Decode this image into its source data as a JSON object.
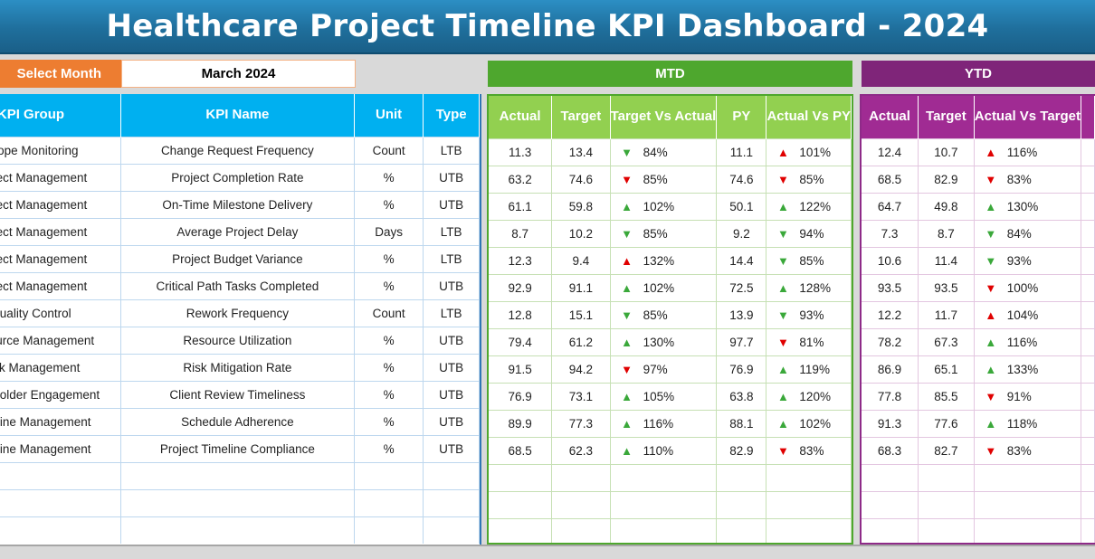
{
  "title": "Healthcare Project Timeline KPI Dashboard - 2024",
  "select_month": {
    "label": "Select Month",
    "value": "March 2024"
  },
  "sections": {
    "mtd": "MTD",
    "ytd": "YTD"
  },
  "left_headers": [
    "KPI Group",
    "KPI Name",
    "Unit",
    "Type"
  ],
  "mtd_headers": [
    "Actual",
    "Target",
    "Target Vs Actual",
    "PY",
    "Actual Vs PY"
  ],
  "ytd_headers": [
    "Actual",
    "Target",
    "Actual Vs Target"
  ],
  "colors": {
    "mtd_accent": "#4ea72e",
    "ytd_accent": "#7f2579",
    "kpi_header": "#00b0f0",
    "select_month": "#ed7d31",
    "good": "#3aa83a",
    "bad": "#e00000"
  },
  "rows": [
    {
      "group": "Scope Monitoring",
      "name": "Change Request Frequency",
      "unit": "Count",
      "type": "LTB",
      "mtd": {
        "actual": "11.3",
        "target": "13.4",
        "tva": "84%",
        "tva_dir": "down",
        "tva_good": true,
        "py": "11.1",
        "avp": "101%",
        "avp_dir": "up",
        "avp_good": false
      },
      "ytd": {
        "actual": "12.4",
        "target": "10.7",
        "avt": "116%",
        "avt_dir": "up",
        "avt_good": false
      }
    },
    {
      "group": "Project Management",
      "name": "Project Completion Rate",
      "unit": "%",
      "type": "UTB",
      "mtd": {
        "actual": "63.2",
        "target": "74.6",
        "tva": "85%",
        "tva_dir": "down",
        "tva_good": false,
        "py": "74.6",
        "avp": "85%",
        "avp_dir": "down",
        "avp_good": false
      },
      "ytd": {
        "actual": "68.5",
        "target": "82.9",
        "avt": "83%",
        "avt_dir": "down",
        "avt_good": false
      }
    },
    {
      "group": "Project Management",
      "name": "On-Time Milestone Delivery",
      "unit": "%",
      "type": "UTB",
      "mtd": {
        "actual": "61.1",
        "target": "59.8",
        "tva": "102%",
        "tva_dir": "up",
        "tva_good": true,
        "py": "50.1",
        "avp": "122%",
        "avp_dir": "up",
        "avp_good": true
      },
      "ytd": {
        "actual": "64.7",
        "target": "49.8",
        "avt": "130%",
        "avt_dir": "up",
        "avt_good": true
      }
    },
    {
      "group": "Project Management",
      "name": "Average Project Delay",
      "unit": "Days",
      "type": "LTB",
      "mtd": {
        "actual": "8.7",
        "target": "10.2",
        "tva": "85%",
        "tva_dir": "down",
        "tva_good": true,
        "py": "9.2",
        "avp": "94%",
        "avp_dir": "down",
        "avp_good": true
      },
      "ytd": {
        "actual": "7.3",
        "target": "8.7",
        "avt": "84%",
        "avt_dir": "down",
        "avt_good": true
      }
    },
    {
      "group": "Project Management",
      "name": "Project Budget Variance",
      "unit": "%",
      "type": "LTB",
      "mtd": {
        "actual": "12.3",
        "target": "9.4",
        "tva": "132%",
        "tva_dir": "up",
        "tva_good": false,
        "py": "14.4",
        "avp": "85%",
        "avp_dir": "down",
        "avp_good": true
      },
      "ytd": {
        "actual": "10.6",
        "target": "11.4",
        "avt": "93%",
        "avt_dir": "down",
        "avt_good": true
      }
    },
    {
      "group": "Project Management",
      "name": "Critical Path Tasks Completed",
      "unit": "%",
      "type": "UTB",
      "mtd": {
        "actual": "92.9",
        "target": "91.1",
        "tva": "102%",
        "tva_dir": "up",
        "tva_good": true,
        "py": "72.5",
        "avp": "128%",
        "avp_dir": "up",
        "avp_good": true
      },
      "ytd": {
        "actual": "93.5",
        "target": "93.5",
        "avt": "100%",
        "avt_dir": "down",
        "avt_good": false
      }
    },
    {
      "group": "Quality Control",
      "name": "Rework Frequency",
      "unit": "Count",
      "type": "LTB",
      "mtd": {
        "actual": "12.8",
        "target": "15.1",
        "tva": "85%",
        "tva_dir": "down",
        "tva_good": true,
        "py": "13.9",
        "avp": "93%",
        "avp_dir": "down",
        "avp_good": true
      },
      "ytd": {
        "actual": "12.2",
        "target": "11.7",
        "avt": "104%",
        "avt_dir": "up",
        "avt_good": false
      }
    },
    {
      "group": "Resource Management",
      "name": "Resource Utilization",
      "unit": "%",
      "type": "UTB",
      "mtd": {
        "actual": "79.4",
        "target": "61.2",
        "tva": "130%",
        "tva_dir": "up",
        "tva_good": true,
        "py": "97.7",
        "avp": "81%",
        "avp_dir": "down",
        "avp_good": false
      },
      "ytd": {
        "actual": "78.2",
        "target": "67.3",
        "avt": "116%",
        "avt_dir": "up",
        "avt_good": true
      }
    },
    {
      "group": "Risk Management",
      "name": "Risk Mitigation Rate",
      "unit": "%",
      "type": "UTB",
      "mtd": {
        "actual": "91.5",
        "target": "94.2",
        "tva": "97%",
        "tva_dir": "down",
        "tva_good": false,
        "py": "76.9",
        "avp": "119%",
        "avp_dir": "up",
        "avp_good": true
      },
      "ytd": {
        "actual": "86.9",
        "target": "65.1",
        "avt": "133%",
        "avt_dir": "up",
        "avt_good": true
      }
    },
    {
      "group": "Stakeholder Engagement",
      "name": "Client Review Timeliness",
      "unit": "%",
      "type": "UTB",
      "mtd": {
        "actual": "76.9",
        "target": "73.1",
        "tva": "105%",
        "tva_dir": "up",
        "tva_good": true,
        "py": "63.8",
        "avp": "120%",
        "avp_dir": "up",
        "avp_good": true
      },
      "ytd": {
        "actual": "77.8",
        "target": "85.5",
        "avt": "91%",
        "avt_dir": "down",
        "avt_good": false
      }
    },
    {
      "group": "Timeline Management",
      "name": "Schedule Adherence",
      "unit": "%",
      "type": "UTB",
      "mtd": {
        "actual": "89.9",
        "target": "77.3",
        "tva": "116%",
        "tva_dir": "up",
        "tva_good": true,
        "py": "88.1",
        "avp": "102%",
        "avp_dir": "up",
        "avp_good": true
      },
      "ytd": {
        "actual": "91.3",
        "target": "77.6",
        "avt": "118%",
        "avt_dir": "up",
        "avt_good": true
      }
    },
    {
      "group": "Timeline Management",
      "name": "Project Timeline Compliance",
      "unit": "%",
      "type": "UTB",
      "mtd": {
        "actual": "68.5",
        "target": "62.3",
        "tva": "110%",
        "tva_dir": "up",
        "tva_good": true,
        "py": "82.9",
        "avp": "83%",
        "avp_dir": "down",
        "avp_good": false
      },
      "ytd": {
        "actual": "68.3",
        "target": "82.7",
        "avt": "83%",
        "avt_dir": "down",
        "avt_good": false
      }
    }
  ],
  "empty_rows": 3
}
